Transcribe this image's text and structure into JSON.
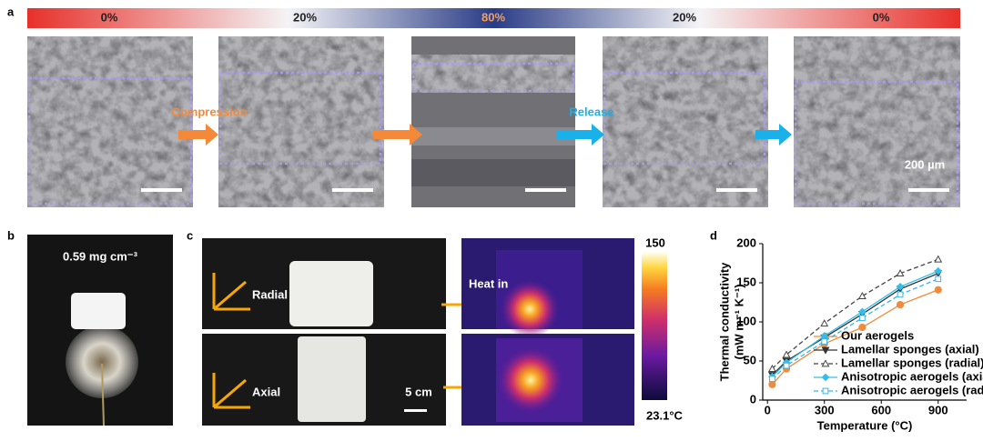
{
  "panel_a": {
    "label": "a",
    "strains": [
      "0%",
      "20%",
      "80%",
      "20%",
      "0%"
    ],
    "steps": [
      "Compression",
      "Release"
    ],
    "scale_bar": "200 µm"
  },
  "panel_b": {
    "label": "b",
    "density": "0.59 mg cm⁻³"
  },
  "panel_c": {
    "label": "c",
    "directions": [
      "Radial",
      "Axial"
    ],
    "heat": "Heat in",
    "scale_bar": "5 cm",
    "colorbar": [
      "150",
      "23.1°C"
    ]
  },
  "chart_data": {
    "type": "line",
    "label": "d",
    "ylabel": [
      "Thermal conductivity",
      "(mW m⁻¹ K⁻¹)"
    ],
    "xlabel": "Temperature (°C)",
    "x": [
      25,
      100,
      300,
      500,
      700,
      900
    ],
    "xlim": [
      -25,
      1050
    ],
    "xticks": [
      0,
      300,
      600,
      900
    ],
    "ylim": [
      0,
      200
    ],
    "yticks": [
      0,
      50,
      100,
      150,
      200
    ],
    "legend": "lower right",
    "series": [
      {
        "name": "Our aerogels",
        "color": "#f08a3c",
        "marker": "circle",
        "open": false,
        "dashed": false,
        "values": [
          20,
          40,
          72,
          93,
          122,
          141
        ]
      },
      {
        "name": "Lamellar sponges (axial)",
        "color": "#333333",
        "marker": "triangle-down",
        "open": false,
        "dashed": false,
        "values": [
          32,
          50,
          80,
          110,
          142,
          162
        ]
      },
      {
        "name": "Lamellar sponges (radial)",
        "color": "#444444",
        "marker": "triangle-up",
        "open": true,
        "dashed": true,
        "values": [
          40,
          58,
          98,
          133,
          162,
          180
        ]
      },
      {
        "name": "Anisotropic aerogels (axial)",
        "color": "#35bde8",
        "marker": "diamond",
        "open": false,
        "dashed": false,
        "values": [
          30,
          48,
          82,
          113,
          145,
          165
        ]
      },
      {
        "name": "Anisotropic aerogels (radial)",
        "color": "#3ab4e6",
        "marker": "square",
        "open": true,
        "dashed": true,
        "values": [
          27,
          44,
          75,
          105,
          135,
          155
        ]
      }
    ]
  }
}
